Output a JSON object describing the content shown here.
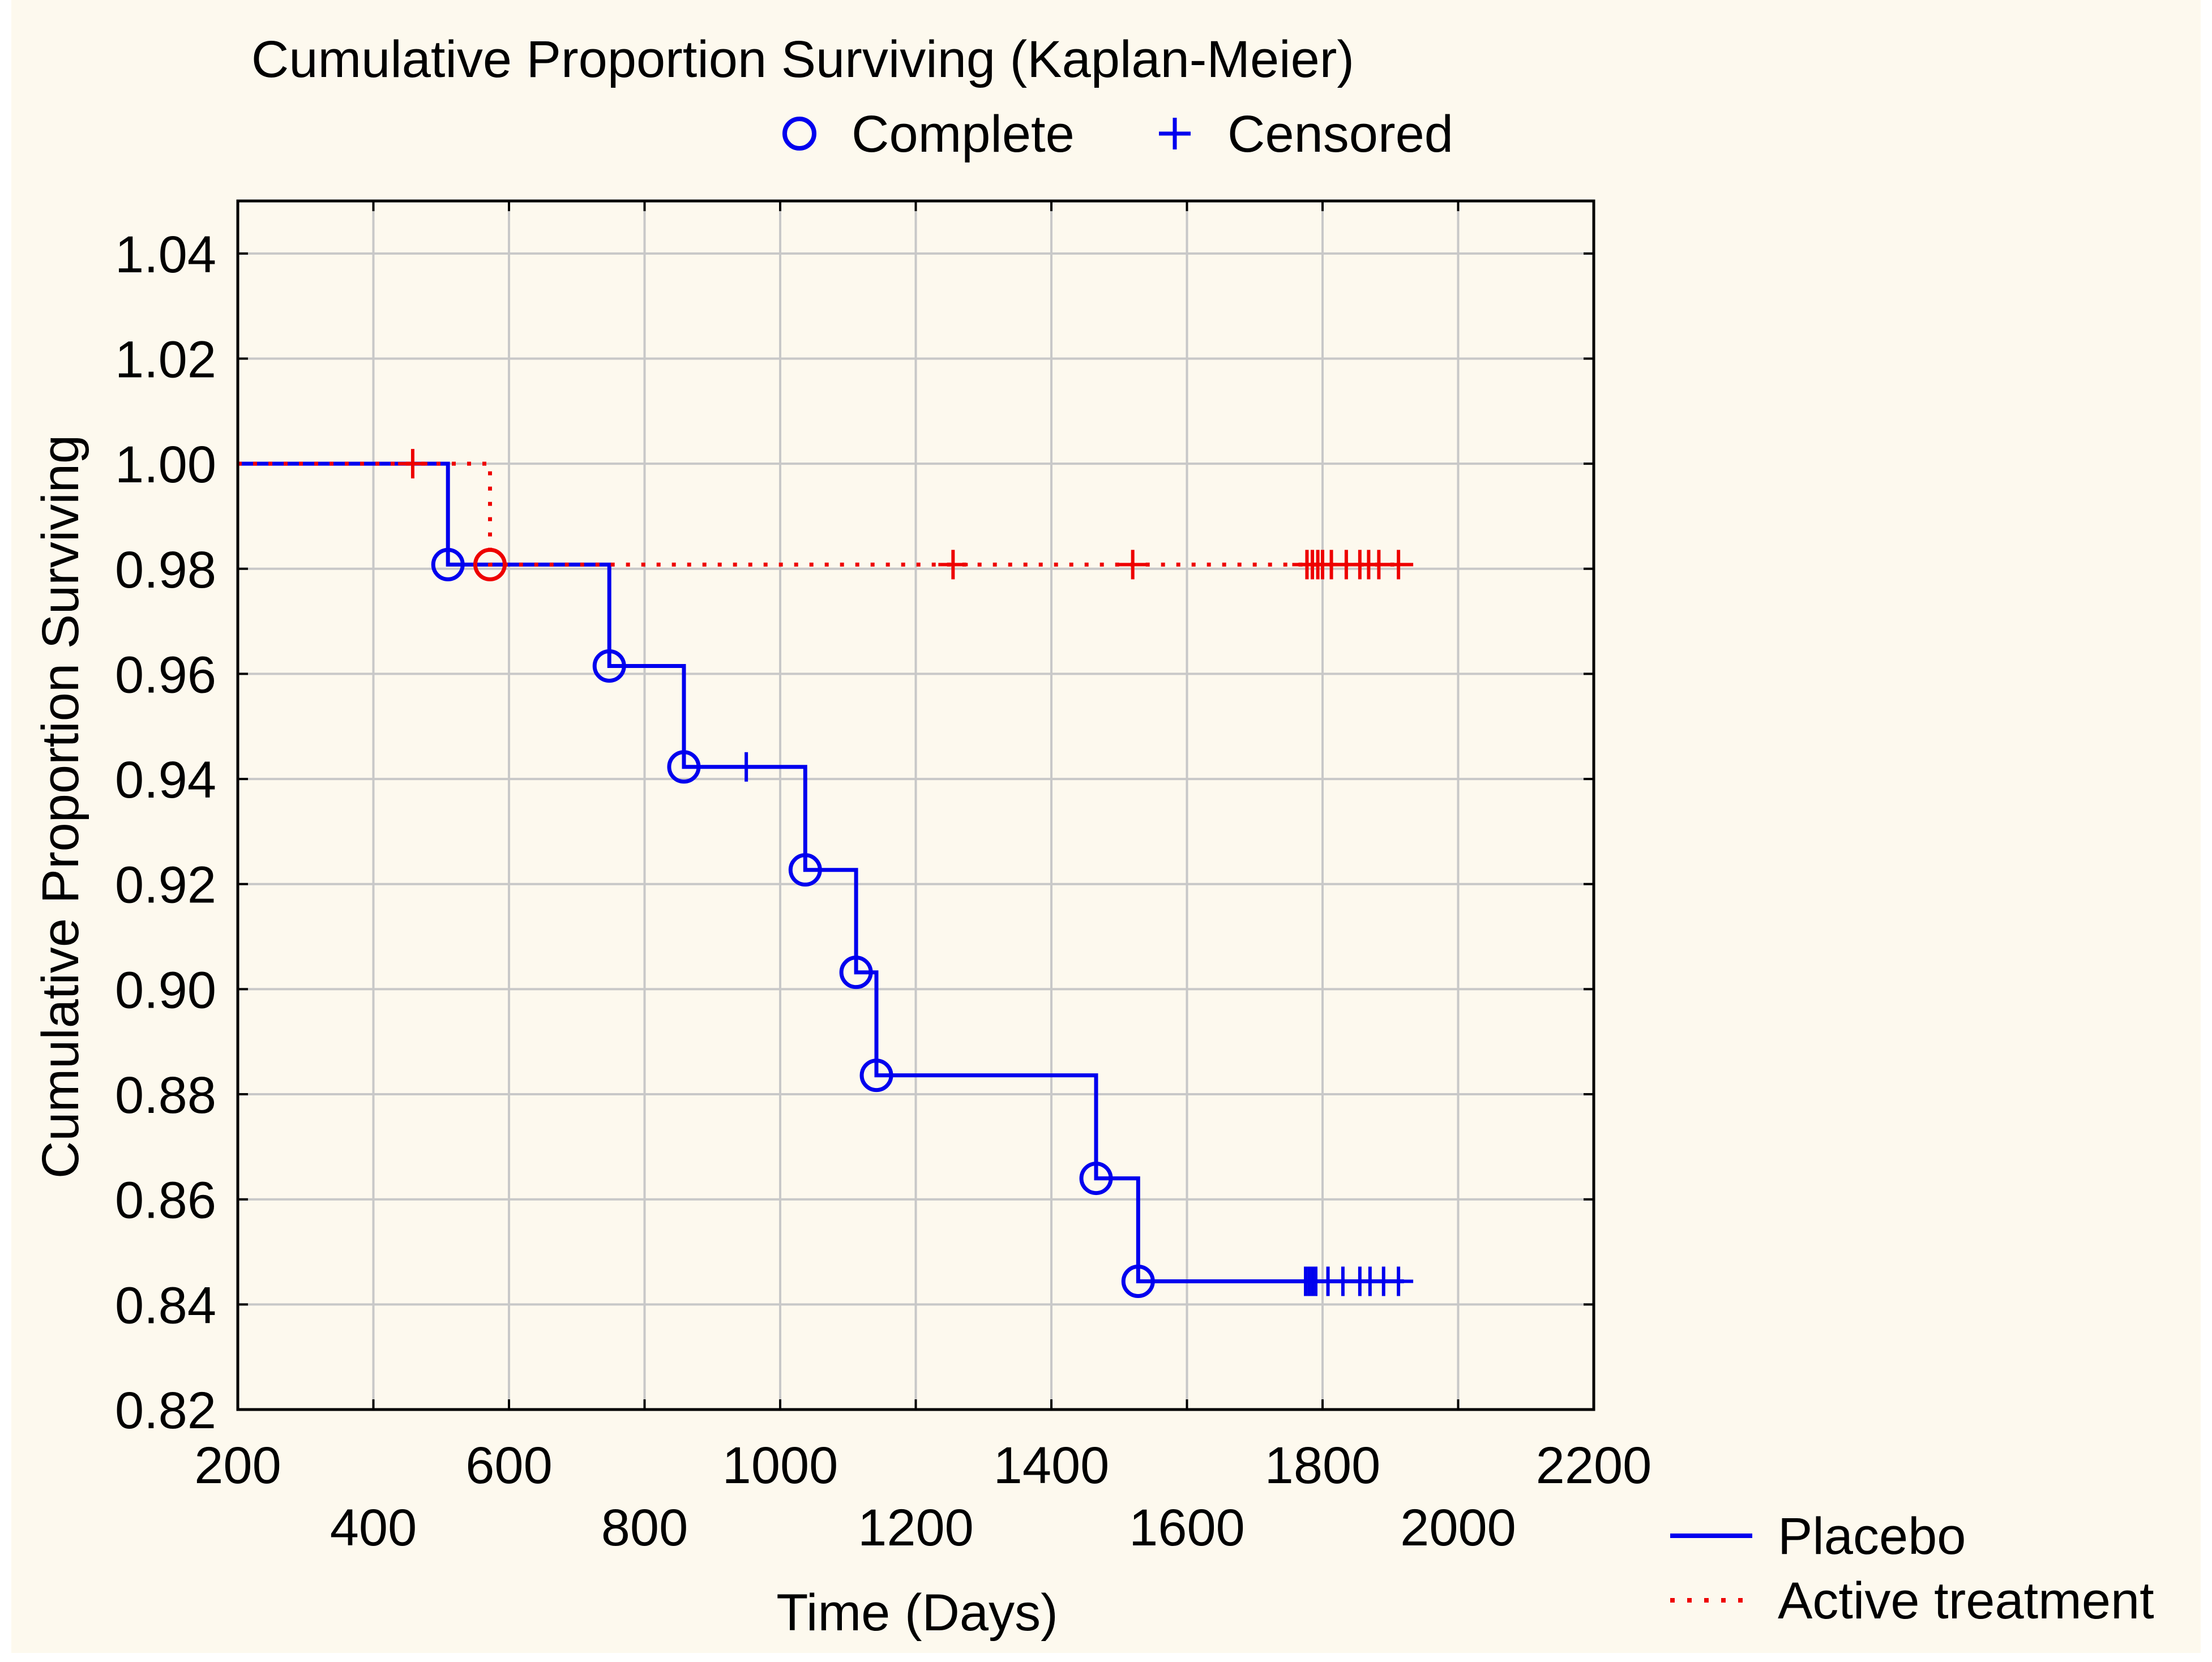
{
  "chart_data": {
    "type": "line",
    "title": "Cumulative Proportion Surviving (Kaplan-Meier)",
    "marker_legend": [
      {
        "label": "Complete",
        "marker": "circle"
      },
      {
        "label": "Censored",
        "marker": "plus"
      }
    ],
    "xlabel": "Time (Days)",
    "ylabel": "Cumulative Proportion Surviving",
    "xlim": [
      200,
      2200
    ],
    "ylim": [
      0.82,
      1.05
    ],
    "x_ticks": [
      200,
      400,
      600,
      800,
      1000,
      1200,
      1400,
      1600,
      1800,
      2000,
      2200
    ],
    "x_tick_labels": [
      "200",
      "400",
      "600",
      "800",
      "1000",
      "1200",
      "1400",
      "1600",
      "1800",
      "2000",
      "2200"
    ],
    "y_ticks": [
      0.82,
      0.84,
      0.86,
      0.88,
      0.9,
      0.92,
      0.94,
      0.96,
      0.98,
      1.0,
      1.02,
      1.04
    ],
    "y_tick_labels": [
      "0.82",
      "0.84",
      "0.86",
      "0.88",
      "0.90",
      "0.92",
      "0.94",
      "0.96",
      "0.98",
      "1.00",
      "1.02",
      "1.04"
    ],
    "grid": true,
    "series": [
      {
        "name": "Placebo",
        "color": "#0000ee",
        "style": "solid",
        "steps": [
          [
            200,
            1.0
          ],
          [
            510,
            1.0
          ],
          [
            510,
            0.9808
          ],
          [
            748,
            0.9808
          ],
          [
            748,
            0.9615
          ],
          [
            858,
            0.9615
          ],
          [
            858,
            0.9423
          ],
          [
            1037,
            0.9423
          ],
          [
            1037,
            0.9227
          ],
          [
            1112,
            0.9227
          ],
          [
            1112,
            0.9032
          ],
          [
            1142,
            0.9032
          ],
          [
            1142,
            0.8836
          ],
          [
            1466,
            0.8836
          ],
          [
            1466,
            0.864
          ],
          [
            1528,
            0.864
          ],
          [
            1528,
            0.8444
          ],
          [
            1920,
            0.8444
          ]
        ],
        "complete": [
          [
            510,
            0.9808
          ],
          [
            748,
            0.9615
          ],
          [
            858,
            0.9423
          ],
          [
            1037,
            0.9227
          ],
          [
            1112,
            0.9032
          ],
          [
            1142,
            0.8836
          ],
          [
            1466,
            0.864
          ],
          [
            1528,
            0.8444
          ]
        ],
        "censored": [
          [
            950,
            0.9423
          ],
          [
            1775,
            0.8444
          ],
          [
            1780,
            0.8444
          ],
          [
            1785,
            0.8444
          ],
          [
            1790,
            0.8444
          ],
          [
            1808,
            0.8444
          ],
          [
            1830,
            0.8444
          ],
          [
            1855,
            0.8444
          ],
          [
            1870,
            0.8444
          ],
          [
            1890,
            0.8444
          ],
          [
            1912,
            0.8444
          ]
        ]
      },
      {
        "name": "Active treatment",
        "color": "#ee0000",
        "style": "dotted",
        "steps": [
          [
            200,
            1.0
          ],
          [
            572,
            1.0
          ],
          [
            572,
            0.9808
          ],
          [
            1920,
            0.9808
          ]
        ],
        "complete": [
          [
            572,
            0.9808
          ]
        ],
        "censored": [
          [
            458,
            1.0
          ],
          [
            1255,
            0.9808
          ],
          [
            1520,
            0.9808
          ],
          [
            1777,
            0.9808
          ],
          [
            1785,
            0.9808
          ],
          [
            1793,
            0.9808
          ],
          [
            1800,
            0.9808
          ],
          [
            1813,
            0.9808
          ],
          [
            1835,
            0.9808
          ],
          [
            1855,
            0.9808
          ],
          [
            1868,
            0.9808
          ],
          [
            1883,
            0.9808
          ],
          [
            1912,
            0.9808
          ]
        ]
      }
    ]
  }
}
